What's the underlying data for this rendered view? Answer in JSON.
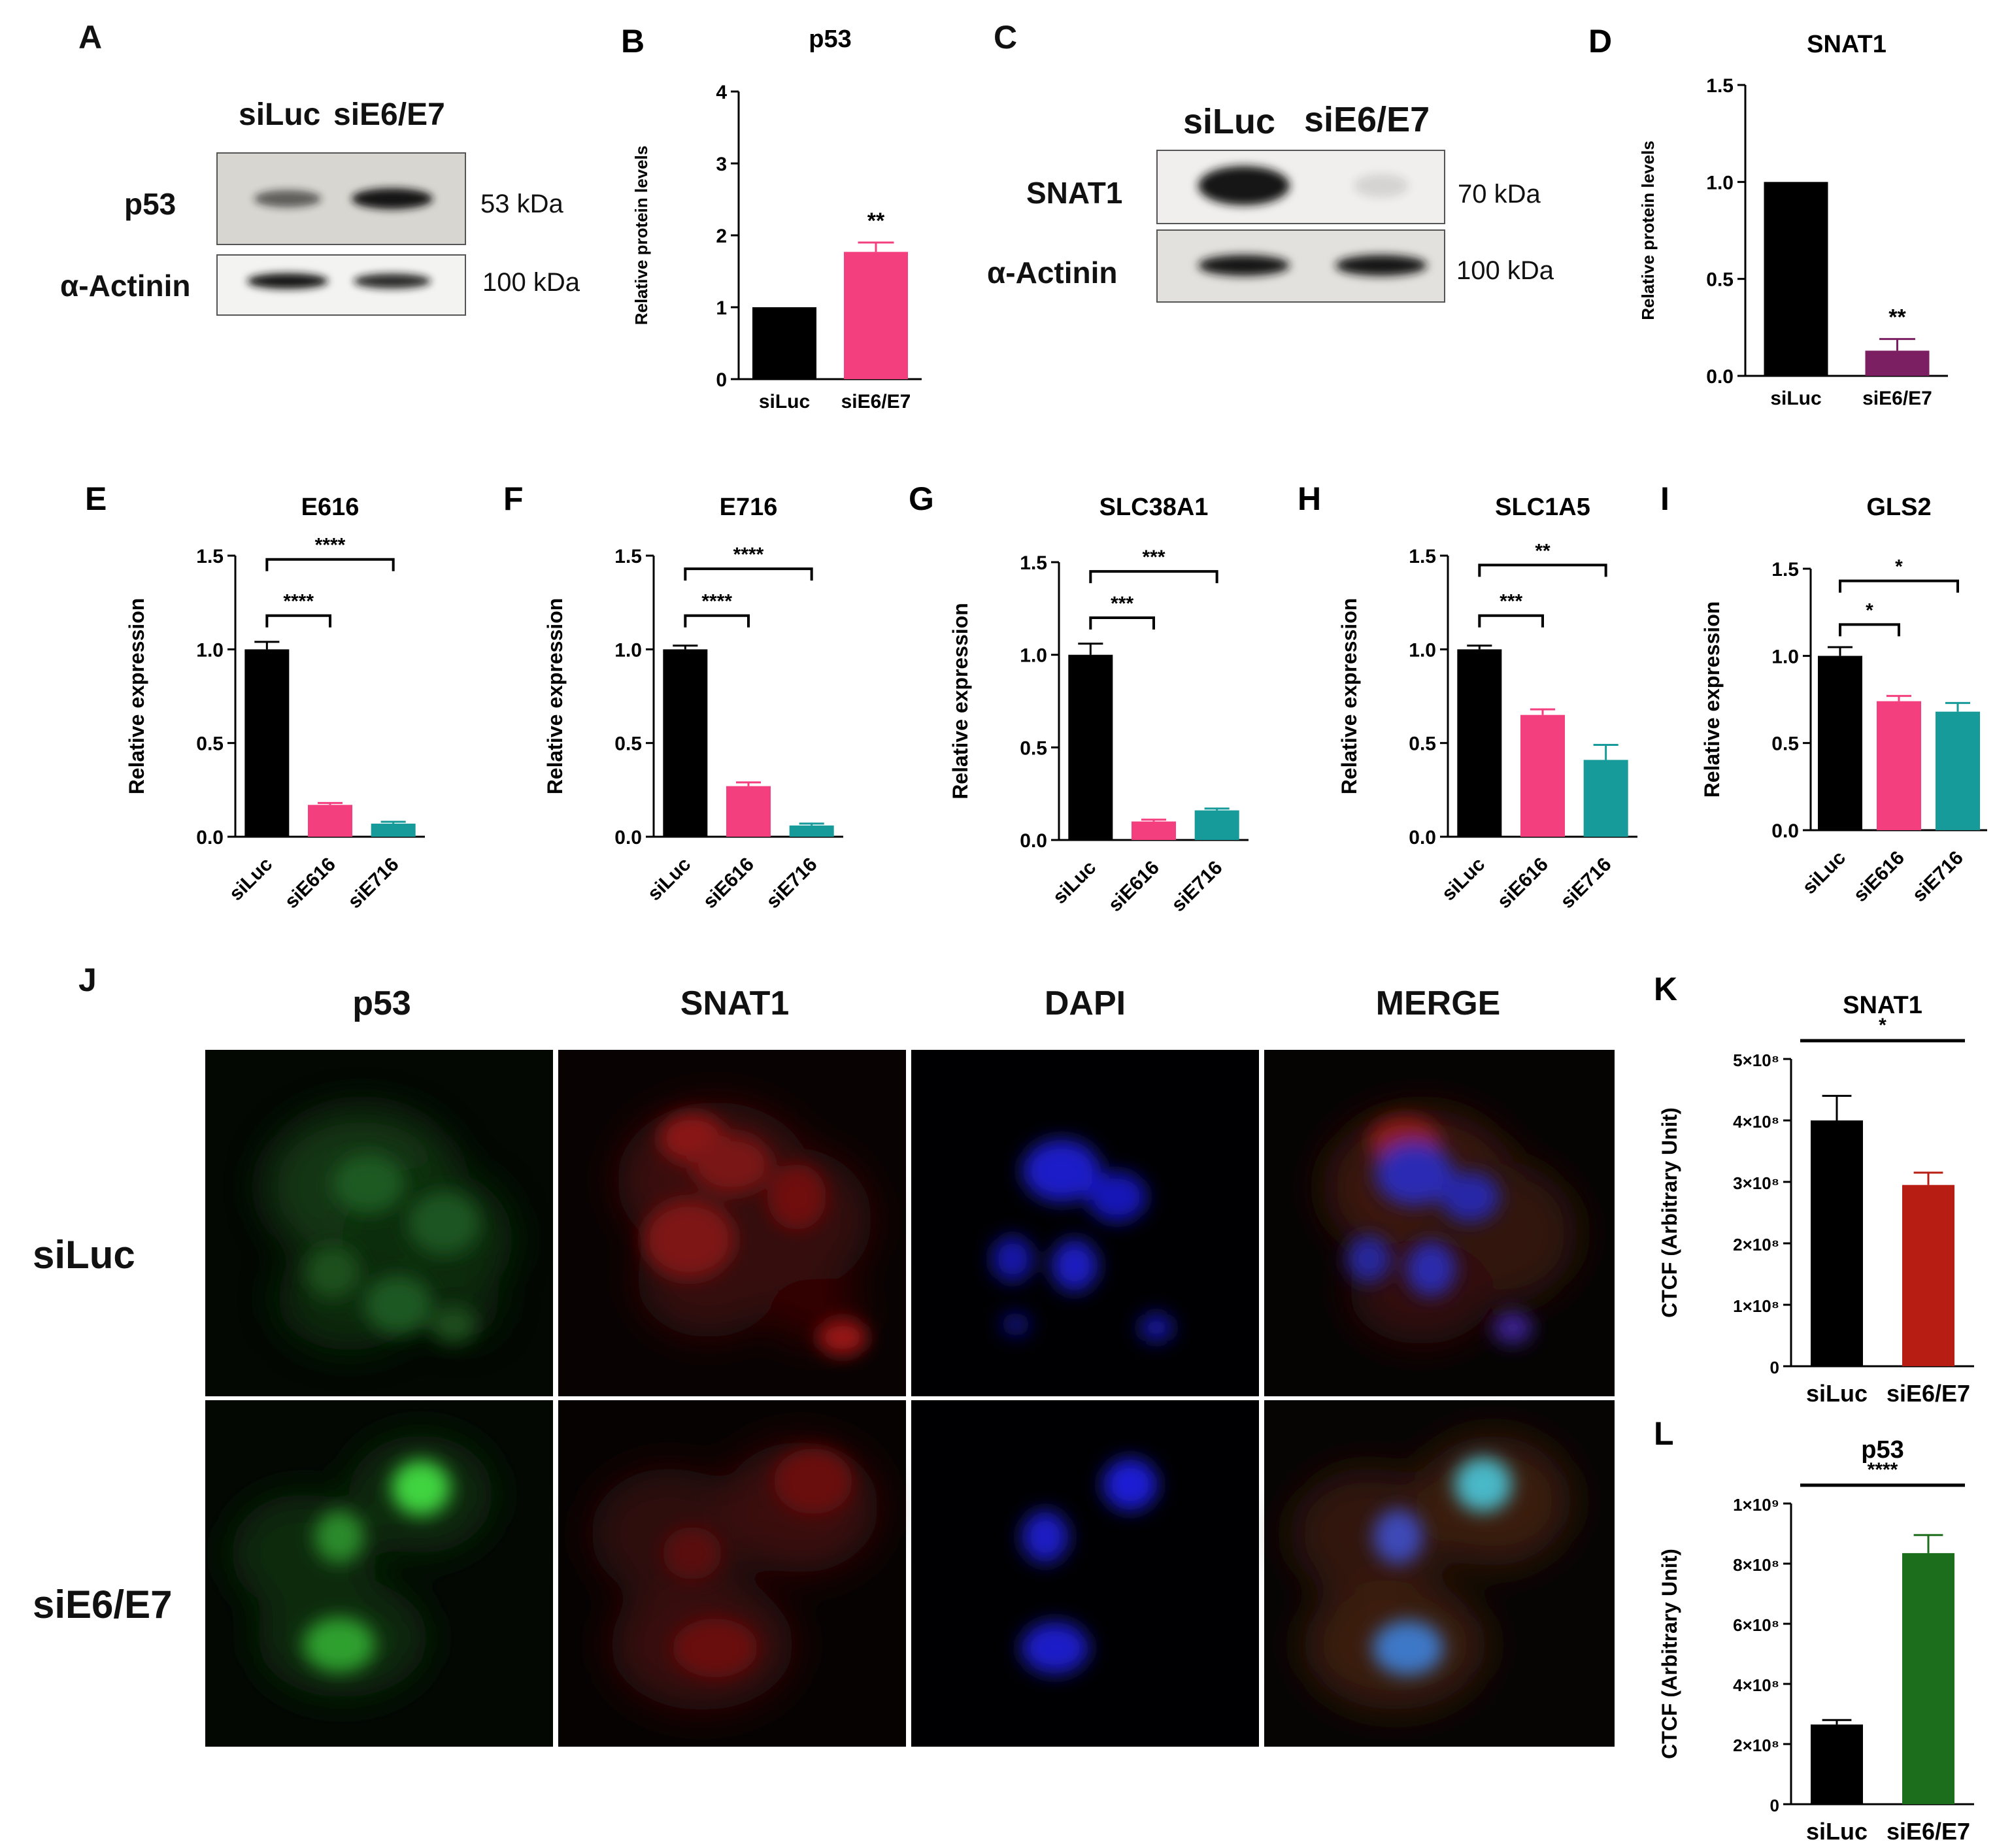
{
  "panels": {
    "A": {
      "letter": "A",
      "lanes": [
        "siLuc",
        "siE6/E7"
      ],
      "rows": [
        {
          "label": "p53",
          "kda": "53 kDa",
          "bands": [
            0.62,
            1.0
          ]
        },
        {
          "label": "α-Actinin",
          "kda": "100 kDa",
          "bands": [
            1.0,
            0.9
          ]
        }
      ]
    },
    "C": {
      "letter": "C",
      "lanes": [
        "siLuc",
        "siE6/E7"
      ],
      "rows": [
        {
          "label": "SNAT1",
          "kda": "70 kDa",
          "bands": [
            1.0,
            0.12
          ]
        },
        {
          "label": "α-Actinin",
          "kda": "100 kDa",
          "bands": [
            1.0,
            1.0
          ]
        }
      ]
    },
    "J": {
      "letter": "J",
      "columns": [
        "p53",
        "SNAT1",
        "DAPI",
        "MERGE"
      ],
      "rows": [
        "siLuc",
        "siE6/E7"
      ]
    }
  },
  "chart_data": [
    {
      "id": "B",
      "letter": "B",
      "type": "bar",
      "title": "p53",
      "ylabel": "Relative protein levels",
      "categories": [
        "siLuc",
        "siE6/E7"
      ],
      "values": [
        1.0,
        1.77
      ],
      "errors": [
        0,
        0.13
      ],
      "colors": [
        "#000000",
        "#f43f7f"
      ],
      "ylim": [
        0,
        4
      ],
      "yticks": [
        "0",
        "1",
        "2",
        "3",
        "4"
      ],
      "sig": [
        {
          "text": "**",
          "type": "above",
          "bar": 1
        }
      ],
      "rotate": false
    },
    {
      "id": "D",
      "letter": "D",
      "type": "bar",
      "title": "SNAT1",
      "ylabel": "Relative protein levels",
      "categories": [
        "siLuc",
        "siE6/E7"
      ],
      "values": [
        1.0,
        0.13
      ],
      "errors": [
        0,
        0.06
      ],
      "colors": [
        "#000000",
        "#7b1f62"
      ],
      "ylim": [
        0,
        1.5
      ],
      "yticks": [
        "0.0",
        "0.5",
        "1.0",
        "1.5"
      ],
      "sig": [
        {
          "text": "**",
          "type": "above",
          "bar": 1
        }
      ],
      "rotate": false
    },
    {
      "id": "E",
      "letter": "E",
      "type": "bar",
      "title": "E616",
      "ylabel": "Relative expression",
      "categories": [
        "siLuc",
        "siE616",
        "siE716"
      ],
      "values": [
        1.0,
        0.17,
        0.07
      ],
      "errors": [
        0.04,
        0.01,
        0.01
      ],
      "colors": [
        "#000000",
        "#f43f7f",
        "#169a9a"
      ],
      "ylim": [
        0,
        1.5
      ],
      "yticks": [
        "0.0",
        "0.5",
        "1.0",
        "1.5"
      ],
      "sig": [
        {
          "text": "****",
          "type": "bracket",
          "from": 0,
          "to": 1,
          "y": 1.18
        },
        {
          "text": "****",
          "type": "bracket",
          "from": 0,
          "to": 2,
          "y": 1.48
        }
      ],
      "rotate": true
    },
    {
      "id": "F",
      "letter": "F",
      "type": "bar",
      "title": "E716",
      "ylabel": "Relative expression",
      "categories": [
        "siLuc",
        "siE616",
        "siE716"
      ],
      "values": [
        1.0,
        0.27,
        0.06
      ],
      "errors": [
        0.02,
        0.02,
        0.01
      ],
      "colors": [
        "#000000",
        "#f43f7f",
        "#169a9a"
      ],
      "ylim": [
        0,
        1.5
      ],
      "yticks": [
        "0.0",
        "0.5",
        "1.0",
        "1.5"
      ],
      "sig": [
        {
          "text": "****",
          "type": "bracket",
          "from": 0,
          "to": 1,
          "y": 1.18
        },
        {
          "text": "****",
          "type": "bracket",
          "from": 0,
          "to": 2,
          "y": 1.43
        }
      ],
      "rotate": true
    },
    {
      "id": "G",
      "letter": "G",
      "type": "bar",
      "title": "SLC38A1",
      "ylabel": "Relative expression",
      "categories": [
        "siLuc",
        "siE616",
        "siE716"
      ],
      "values": [
        1.0,
        0.1,
        0.16
      ],
      "errors": [
        0.06,
        0.01,
        0.01
      ],
      "colors": [
        "#000000",
        "#f43f7f",
        "#169a9a"
      ],
      "ylim": [
        0,
        1.5
      ],
      "yticks": [
        "0.0",
        "0.5",
        "1.0",
        "1.5"
      ],
      "sig": [
        {
          "text": "***",
          "type": "bracket",
          "from": 0,
          "to": 1,
          "y": 1.2
        },
        {
          "text": "***",
          "type": "bracket",
          "from": 0,
          "to": 2,
          "y": 1.45
        }
      ],
      "rotate": true
    },
    {
      "id": "H",
      "letter": "H",
      "type": "bar",
      "title": "SLC1A5",
      "ylabel": "Relative expression",
      "categories": [
        "siLuc",
        "siE616",
        "siE716"
      ],
      "values": [
        1.0,
        0.65,
        0.41
      ],
      "errors": [
        0.02,
        0.03,
        0.08
      ],
      "colors": [
        "#000000",
        "#f43f7f",
        "#169a9a"
      ],
      "ylim": [
        0,
        1.5
      ],
      "yticks": [
        "0.0",
        "0.5",
        "1.0",
        "1.5"
      ],
      "sig": [
        {
          "text": "***",
          "type": "bracket",
          "from": 0,
          "to": 1,
          "y": 1.18
        },
        {
          "text": "**",
          "type": "bracket",
          "from": 0,
          "to": 2,
          "y": 1.45
        }
      ],
      "rotate": true
    },
    {
      "id": "I",
      "letter": "I",
      "type": "bar",
      "title": "GLS2",
      "ylabel": "Relative expression",
      "categories": [
        "siLuc",
        "siE616",
        "siE716"
      ],
      "values": [
        1.0,
        0.74,
        0.68
      ],
      "errors": [
        0.05,
        0.03,
        0.05
      ],
      "colors": [
        "#000000",
        "#f43f7f",
        "#169a9a"
      ],
      "ylim": [
        0,
        1.5
      ],
      "yticks": [
        "0.0",
        "0.5",
        "1.0",
        "1.5"
      ],
      "sig": [
        {
          "text": "*",
          "type": "bracket",
          "from": 0,
          "to": 1,
          "y": 1.18
        },
        {
          "text": "*",
          "type": "bracket",
          "from": 0,
          "to": 2,
          "y": 1.43
        }
      ],
      "rotate": true
    },
    {
      "id": "K",
      "letter": "K",
      "type": "bar",
      "title": "SNAT1",
      "ylabel": "CTCF (Arbitrary Unit)",
      "categories": [
        "siLuc",
        "siE6/E7"
      ],
      "values": [
        400000000,
        295000000
      ],
      "errors": [
        40000000,
        20000000
      ],
      "colors": [
        "#000000",
        "#b81d13"
      ],
      "ylim": [
        0,
        500000000
      ],
      "yticks": [
        "0",
        "1×10⁸",
        "2×10⁸",
        "3×10⁸",
        "4×10⁸",
        "5×10⁸"
      ],
      "sig": [
        {
          "text": "*",
          "type": "line",
          "from": 0,
          "to": 1
        }
      ],
      "rotate": false
    },
    {
      "id": "L",
      "letter": "L",
      "type": "bar",
      "title": "p53",
      "ylabel": "CTCF (Arbitrary Unit)",
      "categories": [
        "siLuc",
        "siE6/E7"
      ],
      "values": [
        265000000,
        835000000
      ],
      "errors": [
        15000000,
        60000000
      ],
      "colors": [
        "#000000",
        "#1c6e1c"
      ],
      "ylim": [
        0,
        1000000000
      ],
      "yticks": [
        "0",
        "2×10⁸",
        "4×10⁸",
        "6×10⁸",
        "8×10⁸",
        "1×10⁹"
      ],
      "sig": [
        {
          "text": "****",
          "type": "line",
          "from": 0,
          "to": 1
        }
      ],
      "rotate": false
    }
  ]
}
